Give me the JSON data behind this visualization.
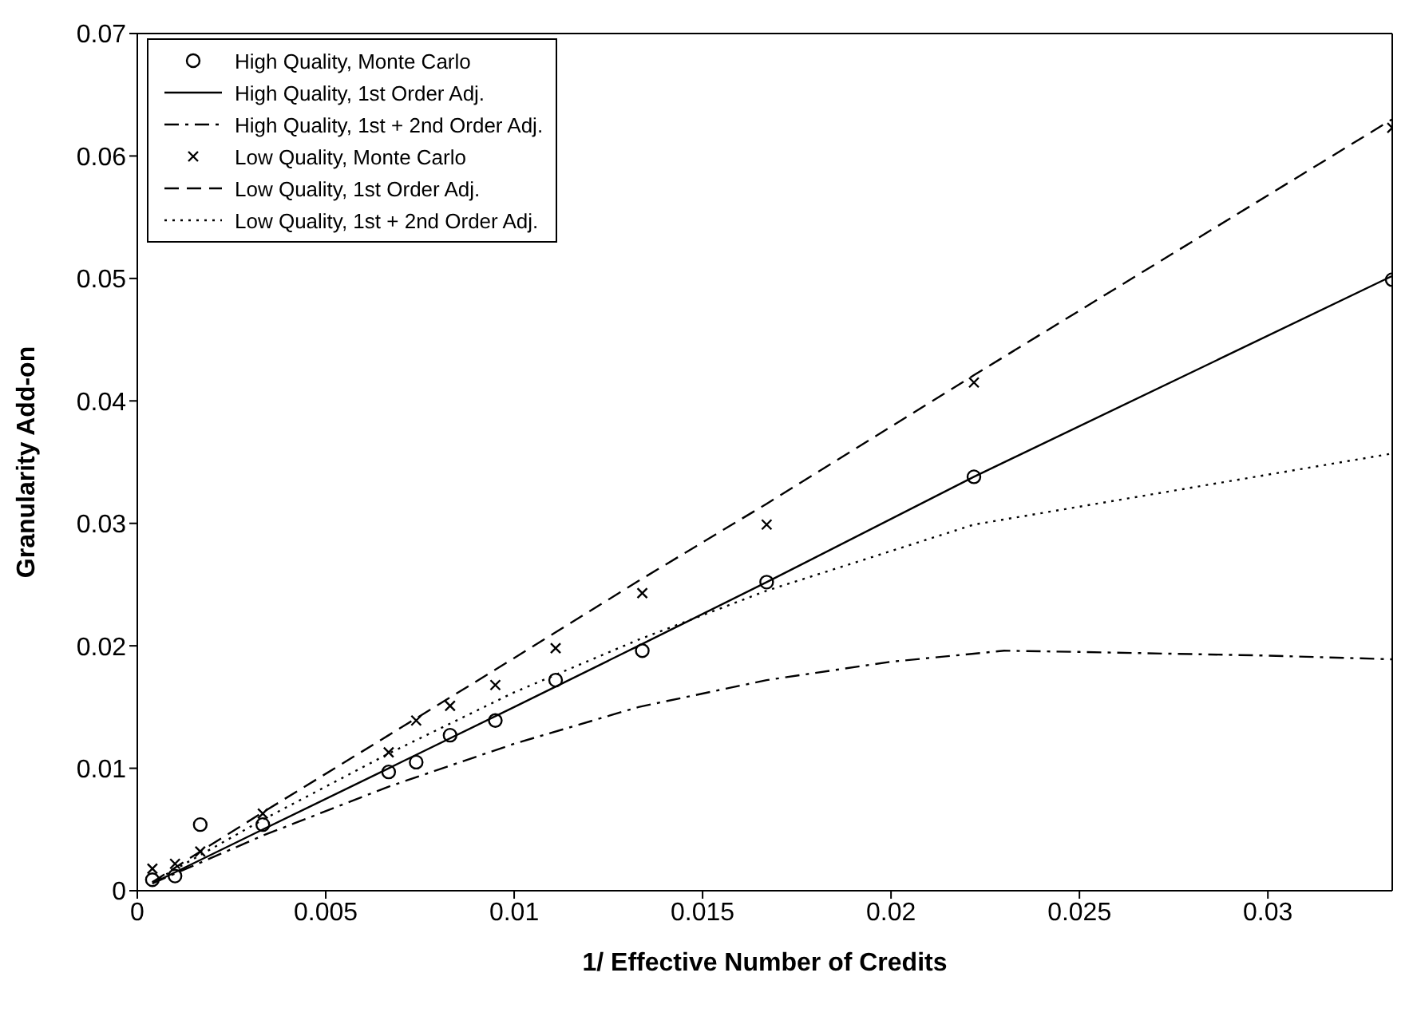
{
  "chart_data": {
    "type": "line",
    "xlabel": "1/ Effective Number of Credits",
    "ylabel": "Granularity Add-on",
    "xlim": [
      0,
      0.0333
    ],
    "ylim": [
      0,
      0.07
    ],
    "xticks": [
      0,
      0.005,
      0.01,
      0.015,
      0.02,
      0.025,
      0.03
    ],
    "yticks": [
      0,
      0.01,
      0.02,
      0.03,
      0.04,
      0.05,
      0.06,
      0.07
    ],
    "legend": "top left",
    "series": [
      {
        "name": "High Quality, Monte Carlo",
        "type": "scatter",
        "marker": "circle",
        "color": "#000000",
        "x": [
          0.0004,
          0.001,
          0.00167,
          0.00333,
          0.00667,
          0.0074,
          0.0083,
          0.0095,
          0.0111,
          0.0134,
          0.0167,
          0.0222,
          0.0333
        ],
        "values": [
          0.0009,
          0.0012,
          0.0054,
          0.0054,
          0.0097,
          0.0105,
          0.0127,
          0.0139,
          0.0172,
          0.0196,
          0.0252,
          0.0338,
          0.0499
        ]
      },
      {
        "name": "High Quality, 1st Order Adj.",
        "type": "line",
        "marker": "none",
        "line_style": "solid",
        "color": "#000000",
        "x": [
          0.0004,
          0.00333,
          0.00667,
          0.01,
          0.0133,
          0.0167,
          0.0222,
          0.0333
        ],
        "values": [
          0.0006,
          0.005,
          0.01,
          0.015,
          0.02,
          0.0252,
          0.0338,
          0.0502
        ]
      },
      {
        "name": "High Quality, 1st + 2nd Order Adj.",
        "type": "line",
        "marker": "none",
        "line_style": "dashdot",
        "color": "#000000",
        "x": [
          0.0004,
          0.00333,
          0.00667,
          0.01,
          0.0133,
          0.0167,
          0.02,
          0.023,
          0.025,
          0.03,
          0.0333
        ],
        "values": [
          0.0006,
          0.0045,
          0.0085,
          0.012,
          0.015,
          0.0172,
          0.0187,
          0.0196,
          0.0195,
          0.0192,
          0.0189
        ]
      },
      {
        "name": "Low Quality, Monte Carlo",
        "type": "scatter",
        "marker": "cross",
        "color": "#000000",
        "x": [
          0.0004,
          0.001,
          0.00167,
          0.00333,
          0.00667,
          0.0074,
          0.0083,
          0.0095,
          0.0111,
          0.0134,
          0.0167,
          0.0222,
          0.0333
        ],
        "values": [
          0.0018,
          0.0022,
          0.0032,
          0.0063,
          0.0113,
          0.0139,
          0.0151,
          0.0168,
          0.0198,
          0.0243,
          0.0299,
          0.0415,
          0.0623
        ]
      },
      {
        "name": "Low Quality, 1st Order Adj.",
        "type": "line",
        "marker": "none",
        "line_style": "dashed",
        "color": "#000000",
        "x": [
          0.0004,
          0.00167,
          0.00333,
          0.00667,
          0.01,
          0.0133,
          0.0167,
          0.0222,
          0.0333
        ],
        "values": [
          0.0007,
          0.0032,
          0.0064,
          0.0127,
          0.019,
          0.0253,
          0.0316,
          0.0421,
          0.063
        ]
      },
      {
        "name": "Low Quality, 1st + 2nd Order Adj.",
        "type": "line",
        "marker": "none",
        "line_style": "dotted",
        "color": "#000000",
        "x": [
          0.0004,
          0.00333,
          0.00667,
          0.01,
          0.0133,
          0.0167,
          0.0222,
          0.0333
        ],
        "values": [
          0.0007,
          0.0058,
          0.0112,
          0.0162,
          0.0205,
          0.0245,
          0.0299,
          0.0357
        ]
      }
    ]
  }
}
